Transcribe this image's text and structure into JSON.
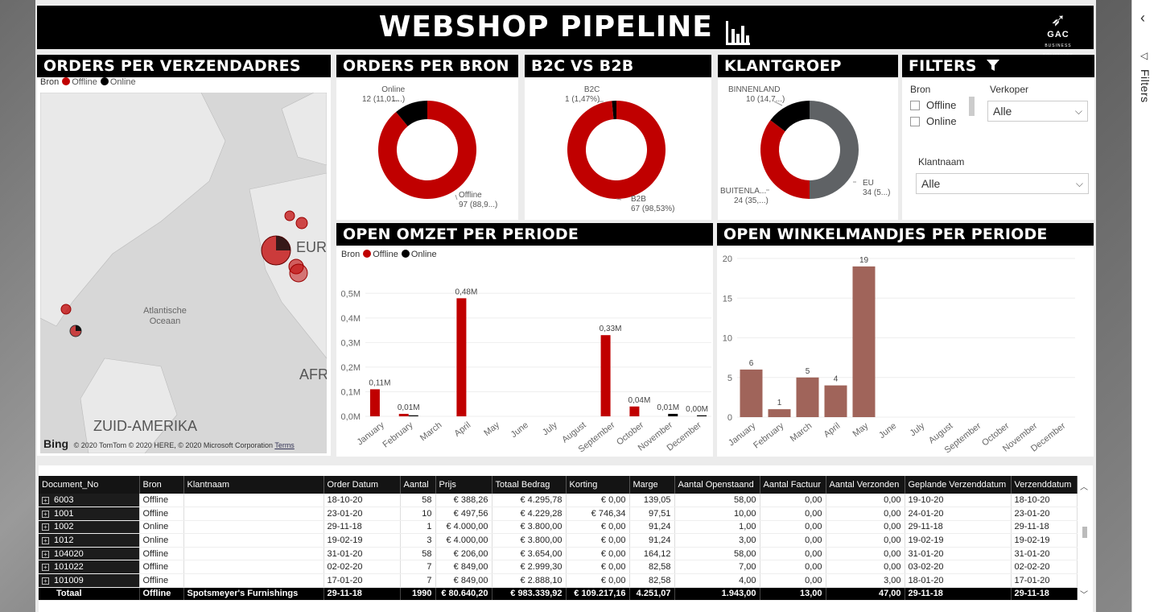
{
  "header": {
    "title": "WEBSHOP PIPELINE",
    "logo_text": "GAC",
    "logo_sub": "BUSINESS SOLUTIONS"
  },
  "side_pane": {
    "label": "Filters"
  },
  "legend": {
    "prefix": "Bron",
    "offline": "Offline",
    "online": "Online"
  },
  "colors": {
    "offline": "#c00000",
    "online": "#000000",
    "eu": "#5f6265",
    "bars": "#a0645a"
  },
  "map_panel": {
    "title": "ORDERS PER VERZENDADRES",
    "labels": {
      "ocean": "Atlantische Oceaan",
      "europe": "EURO",
      "africa": "AFRI",
      "south_america": "ZUID-AMERIKA"
    },
    "attribution": "© 2020 TomTom © 2020 HERE, © 2020 Microsoft Corporation",
    "terms": "Terms",
    "bing": "Bing"
  },
  "bron_panel": {
    "title": "ORDERS PER BRON",
    "online_label": "Online",
    "online_value": "12 (11,01...)",
    "offline_label": "Offline",
    "offline_value": "97 (88,9...)"
  },
  "b2c_panel": {
    "title": "B2C VS B2B",
    "b2c_label": "B2C",
    "b2c_value": "1 (1,47%)",
    "b2b_label": "B2B",
    "b2b_value": "67 (98,53%)"
  },
  "klant_panel": {
    "title": "KLANTGROEP",
    "binnen_label": "BINNENLAND",
    "binnen_value": "10 (14,7...)",
    "buiten_label": "BUITENLA...",
    "buiten_value": "24 (35,...)",
    "eu_label": "EU",
    "eu_value": "34 (5...)"
  },
  "filters": {
    "title": "FILTERS",
    "bron_label": "Bron",
    "bron_opts": [
      "Offline",
      "Online"
    ],
    "verkoper_label": "Verkoper",
    "verkoper_value": "Alle",
    "klantnaam_label": "Klantnaam",
    "klantnaam_value": "Alle"
  },
  "omzet_panel": {
    "title": "OPEN OMZET PER PERIODE"
  },
  "winkel_panel": {
    "title": "OPEN WINKELMANDJES PER PERIODE"
  },
  "chart_data": [
    {
      "type": "pie",
      "title": "ORDERS PER BRON",
      "labels": [
        "Offline",
        "Online"
      ],
      "values": [
        97,
        12
      ]
    },
    {
      "type": "pie",
      "title": "B2C VS B2B",
      "labels": [
        "B2B",
        "B2C"
      ],
      "values": [
        67,
        1
      ]
    },
    {
      "type": "pie",
      "title": "KLANTGROEP",
      "labels": [
        "EU",
        "BUITENLA...",
        "BINNENLAND"
      ],
      "values": [
        34,
        24,
        10
      ]
    },
    {
      "type": "bar",
      "title": "OPEN OMZET PER PERIODE",
      "legend": "top-left",
      "categories": [
        "January",
        "February",
        "March",
        "April",
        "May",
        "June",
        "July",
        "August",
        "September",
        "October",
        "November",
        "December"
      ],
      "series": [
        {
          "name": "Offline",
          "values": [
            0.11,
            0.01,
            0,
            0.48,
            0,
            0,
            0,
            0,
            0.33,
            0.04,
            0,
            0
          ]
        },
        {
          "name": "Online",
          "values": [
            0,
            0.004,
            0,
            0,
            0,
            0,
            0,
            0,
            0,
            0,
            0.01,
            0.004
          ]
        }
      ],
      "value_labels": [
        "0,11M",
        "0,01M",
        "",
        "0,48M",
        "",
        "",
        "",
        "",
        "0,33M",
        "0,04M",
        "0,01M",
        "0,00M"
      ],
      "yticks": [
        "0,0M",
        "0,1M",
        "0,2M",
        "0,3M",
        "0,4M",
        "0,5M"
      ],
      "ylim": [
        0,
        0.55
      ]
    },
    {
      "type": "bar",
      "title": "OPEN WINKELMANDJES PER PERIODE",
      "categories": [
        "January",
        "February",
        "March",
        "April",
        "May",
        "June",
        "July",
        "August",
        "September",
        "October",
        "November",
        "December"
      ],
      "values": [
        6,
        1,
        5,
        4,
        19,
        0,
        0,
        0,
        0,
        0,
        0,
        0
      ],
      "yticks": [
        "0",
        "5",
        "10",
        "15",
        "20"
      ],
      "ylim": [
        0,
        20
      ]
    }
  ],
  "table": {
    "columns": [
      "Document_No",
      "Bron",
      "Klantnaam",
      "Order Datum",
      "Aantal",
      "Prijs",
      "Totaal Bedrag",
      "Korting",
      "Marge",
      "Aantal Openstaand",
      "Aantal Factuur",
      "Aantal Verzonden",
      "Geplande Verzenddatum",
      "Verzenddatum"
    ],
    "rows": [
      [
        "6003",
        "Offline",
        "",
        "18-10-20",
        "58",
        "€ 388,26",
        "€ 4.295,78",
        "€ 0,00",
        "139,05",
        "58,00",
        "0,00",
        "0,00",
        "19-10-20",
        "18-10-20"
      ],
      [
        "1001",
        "Offline",
        "",
        "23-01-20",
        "10",
        "€ 497,56",
        "€ 4.229,28",
        "€ 746,34",
        "97,51",
        "10,00",
        "0,00",
        "0,00",
        "24-01-20",
        "23-01-20"
      ],
      [
        "1002",
        "Online",
        "",
        "29-11-18",
        "1",
        "€ 4.000,00",
        "€ 3.800,00",
        "€ 0,00",
        "91,24",
        "1,00",
        "0,00",
        "0,00",
        "29-11-18",
        "29-11-18"
      ],
      [
        "1012",
        "Online",
        "",
        "19-02-19",
        "3",
        "€ 4.000,00",
        "€ 3.800,00",
        "€ 0,00",
        "91,24",
        "3,00",
        "0,00",
        "0,00",
        "19-02-19",
        "19-02-19"
      ],
      [
        "104020",
        "Offline",
        "",
        "31-01-20",
        "58",
        "€ 206,00",
        "€ 3.654,00",
        "€ 0,00",
        "164,12",
        "58,00",
        "0,00",
        "0,00",
        "31-01-20",
        "31-01-20"
      ],
      [
        "101022",
        "Offline",
        "",
        "02-02-20",
        "7",
        "€ 849,00",
        "€ 2.999,30",
        "€ 0,00",
        "82,58",
        "7,00",
        "0,00",
        "0,00",
        "03-02-20",
        "02-02-20"
      ],
      [
        "101009",
        "Offline",
        "",
        "17-01-20",
        "7",
        "€ 849,00",
        "€ 2.888,10",
        "€ 0,00",
        "82,58",
        "4,00",
        "0,00",
        "3,00",
        "18-01-20",
        "17-01-20"
      ]
    ],
    "total": [
      "Totaal",
      "Offline",
      "Spotsmeyer's Furnishings",
      "29-11-18",
      "1990",
      "€ 80.640,20",
      "€ 983.339,92",
      "€ 109.217,16",
      "4.251,07",
      "1.943,00",
      "13,00",
      "47,00",
      "29-11-18",
      "29-11-18"
    ]
  }
}
